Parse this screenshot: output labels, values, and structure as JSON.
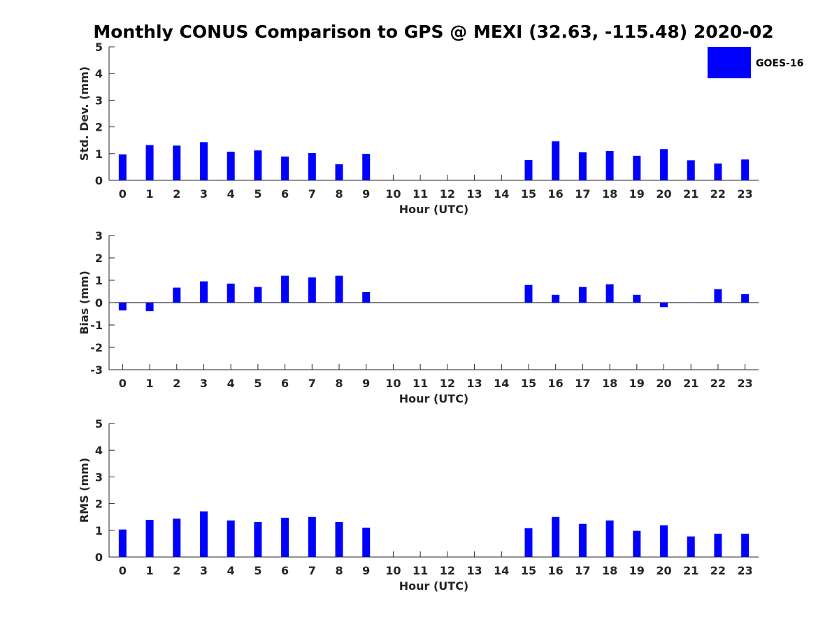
{
  "chart_data": {
    "title": "Monthly CONUS Comparison to GPS @ MEXI (32.63, -115.48) 2020-02",
    "type": "bar",
    "categories": [
      "0",
      "1",
      "2",
      "3",
      "4",
      "5",
      "6",
      "7",
      "8",
      "9",
      "10",
      "11",
      "12",
      "13",
      "14",
      "15",
      "16",
      "17",
      "18",
      "19",
      "20",
      "21",
      "22",
      "23"
    ],
    "legend": {
      "label": "GOES-16",
      "color": "#0000ff",
      "placement": "top-right"
    },
    "panels": [
      {
        "id": "stddev",
        "ylabel": "Std. Dev. (mm)",
        "xlabel": "Hour (UTC)",
        "ylim": [
          0,
          5
        ],
        "yticks": [
          0,
          1,
          2,
          3,
          4,
          5
        ],
        "series": [
          {
            "name": "GOES-16",
            "values": [
              0.97,
              1.32,
              1.3,
              1.43,
              1.07,
              1.12,
              0.89,
              1.02,
              0.6,
              0.99,
              null,
              null,
              null,
              null,
              null,
              0.76,
              1.46,
              1.05,
              1.1,
              0.92,
              1.17,
              0.75,
              0.63,
              0.78
            ]
          }
        ]
      },
      {
        "id": "bias",
        "ylabel": "Bias (mm)",
        "xlabel": "Hour (UTC)",
        "ylim": [
          -3,
          3
        ],
        "yticks": [
          -3,
          -2,
          -1,
          0,
          1,
          2,
          3
        ],
        "series": [
          {
            "name": "GOES-16",
            "values": [
              -0.35,
              -0.38,
              0.67,
              0.95,
              0.85,
              0.7,
              1.2,
              1.13,
              1.2,
              0.47,
              null,
              null,
              null,
              null,
              null,
              0.79,
              0.35,
              0.7,
              0.82,
              0.35,
              -0.2,
              0.0,
              0.6,
              0.38
            ]
          }
        ]
      },
      {
        "id": "rms",
        "ylabel": "RMS (mm)",
        "xlabel": "Hour (UTC)",
        "ylim": [
          0,
          5
        ],
        "yticks": [
          0,
          1,
          2,
          3,
          4,
          5
        ],
        "series": [
          {
            "name": "GOES-16",
            "values": [
              1.03,
              1.39,
              1.44,
              1.71,
              1.37,
              1.31,
              1.47,
              1.5,
              1.31,
              1.1,
              null,
              null,
              null,
              null,
              null,
              1.08,
              1.5,
              1.24,
              1.37,
              0.98,
              1.19,
              0.77,
              0.87,
              0.87
            ]
          }
        ]
      }
    ]
  }
}
